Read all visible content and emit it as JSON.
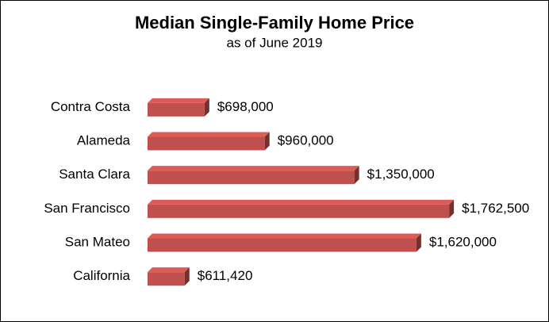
{
  "chart_data": {
    "type": "bar",
    "orientation": "horizontal",
    "title": "Median Single-Family Home Price",
    "subtitle": "as of June 2019",
    "categories": [
      "Contra Costa",
      "Alameda",
      "Santa Clara",
      "San Francisco",
      "San Mateo",
      "California"
    ],
    "values": [
      698000,
      960000,
      1350000,
      1762500,
      1620000,
      611420
    ],
    "value_labels": [
      "$698,000",
      "$960,000",
      "$1,350,000",
      "$1,762,500",
      "$1,620,000",
      "$611,420"
    ],
    "color": "#c0504d",
    "xlim": [
      450000,
      1800000
    ]
  }
}
